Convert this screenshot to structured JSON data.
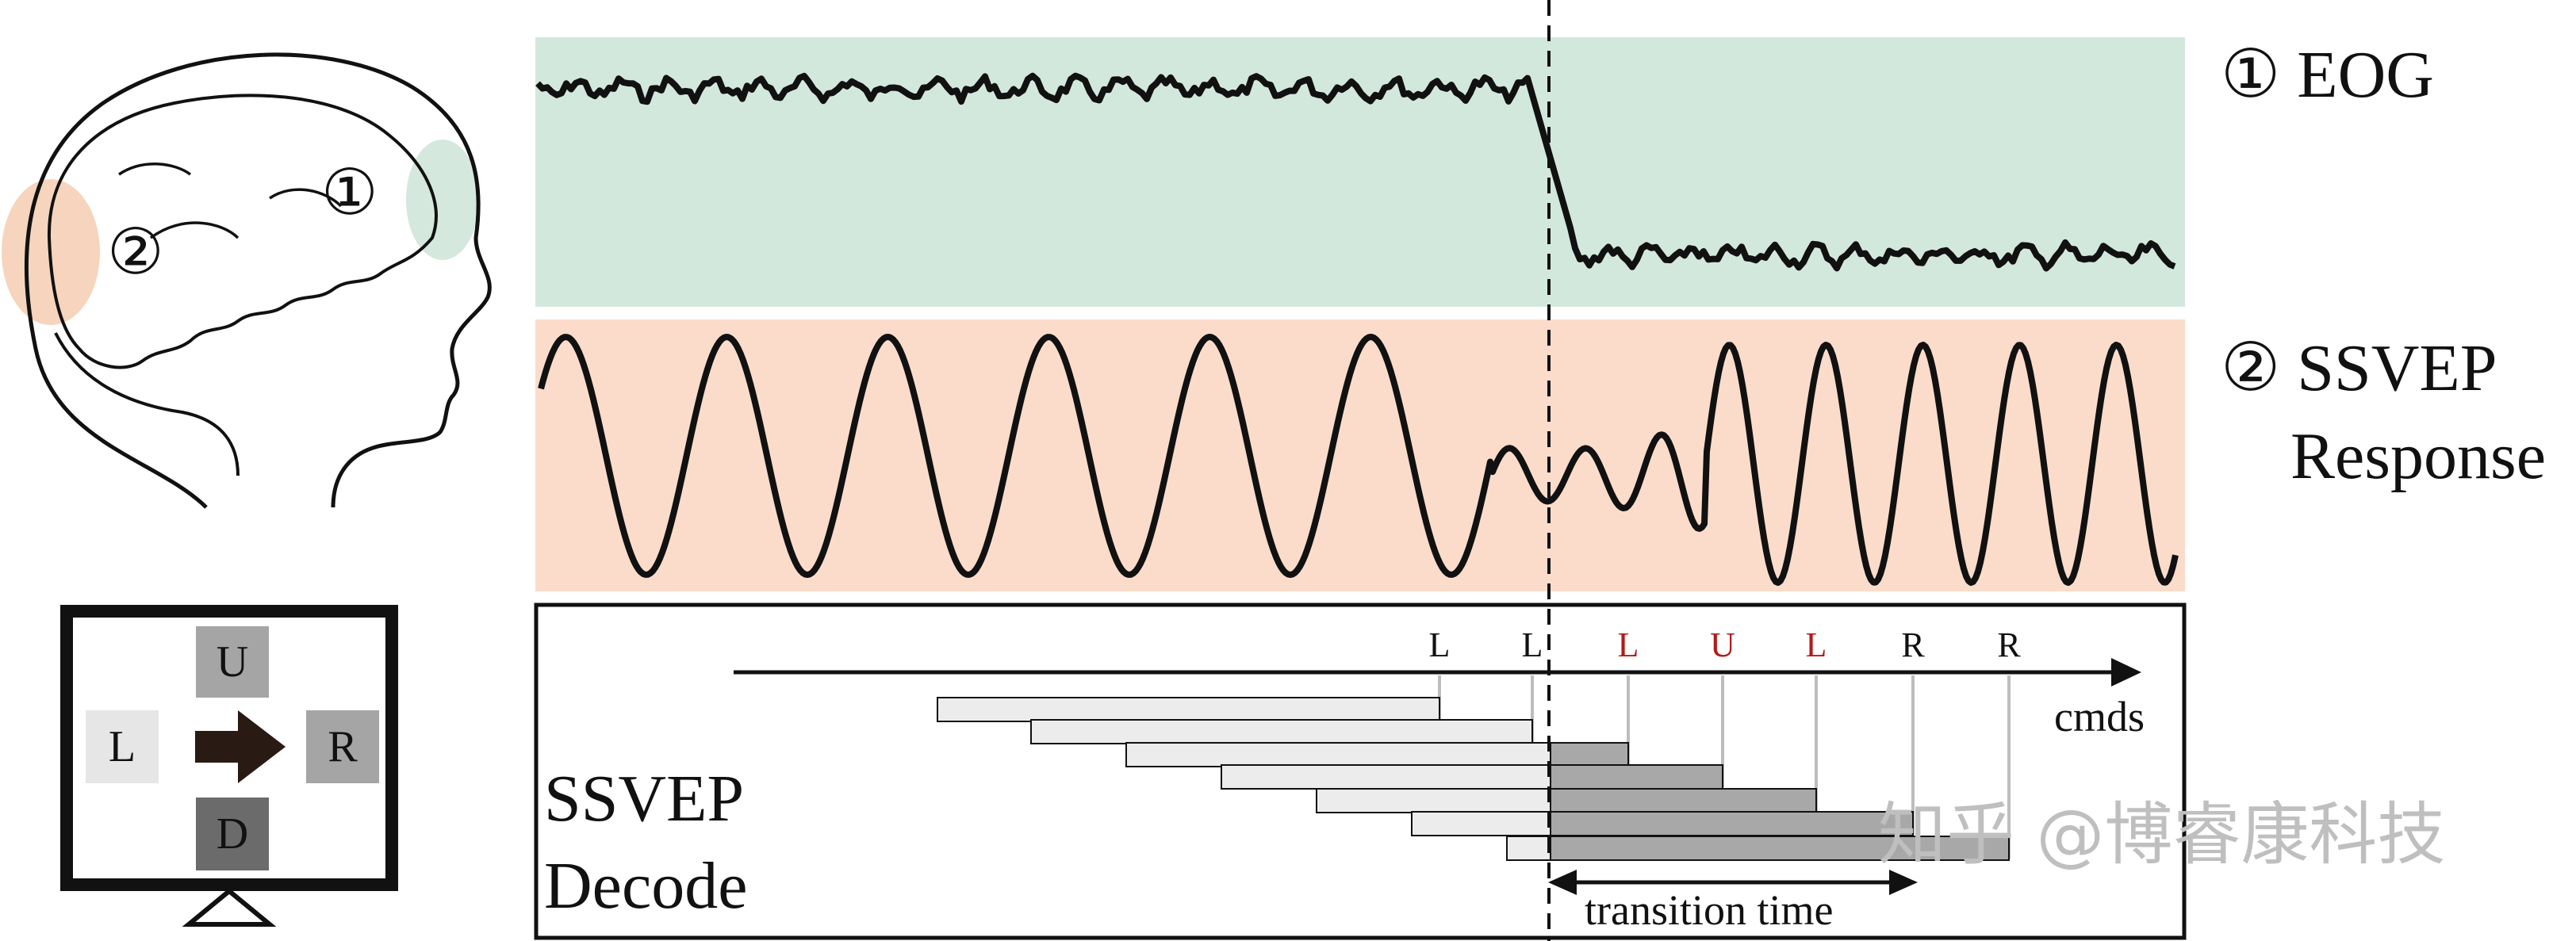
{
  "head": {
    "marker_1": "①",
    "marker_2": "②"
  },
  "signals": {
    "eog": {
      "label": "① EOG"
    },
    "ssvep": {
      "label_line1": "② SSVEP",
      "label_line2": "Response"
    }
  },
  "screen": {
    "keys": {
      "up": "U",
      "left": "L",
      "right": "R",
      "down": "D"
    }
  },
  "decode": {
    "title_line1": "SSVEP",
    "title_line2": "Decode",
    "axis_label": "cmds",
    "transition_label": "transition time",
    "commands": [
      {
        "text": "L",
        "color": "#111111"
      },
      {
        "text": "L",
        "color": "#111111"
      },
      {
        "text": "L",
        "color": "#b11b1b"
      },
      {
        "text": "U",
        "color": "#b11b1b"
      },
      {
        "text": "L",
        "color": "#b11b1b"
      },
      {
        "text": "R",
        "color": "#111111"
      },
      {
        "text": "R",
        "color": "#111111"
      }
    ]
  },
  "watermark": "知乎 @博睿康科技",
  "colors": {
    "eog_bg": "#d3e8dc",
    "ssvep_bg": "#fbdccb",
    "bar_light": "#ececec",
    "bar_dark": "#a8a8a8",
    "head_orange": "#f6cdb2",
    "head_green": "#cfe6d9",
    "key_light": "#e6e6e6",
    "key_mid": "#a5a5a5",
    "key_dark": "#6b6b6b",
    "accent_red": "#b11b1b"
  }
}
